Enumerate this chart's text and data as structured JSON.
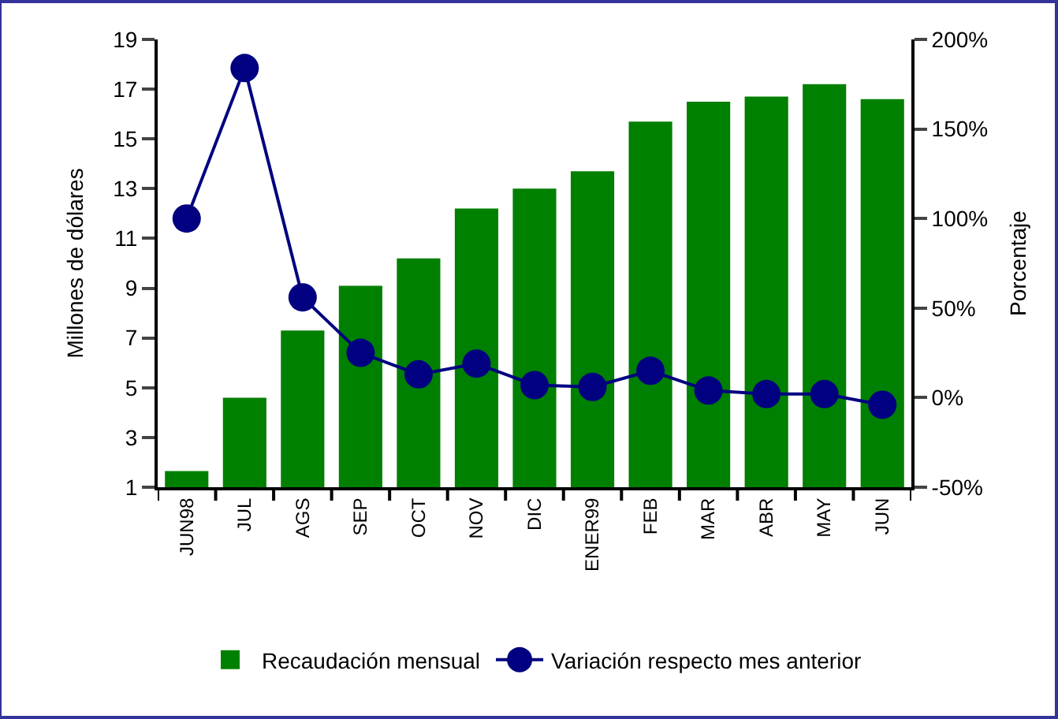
{
  "chart_data": {
    "type": "bar",
    "categories": [
      "JUN98",
      "JUL",
      "AGS",
      "SEP",
      "OCT",
      "NOV",
      "DIC",
      "ENER99",
      "FEB",
      "MAR",
      "ABR",
      "MAY",
      "JUN"
    ],
    "series": [
      {
        "name": "Recaudación mensual",
        "color": "#008000",
        "values": [
          1.65,
          4.6,
          7.3,
          9.1,
          10.2,
          12.2,
          13.0,
          13.7,
          15.7,
          16.5,
          16.7,
          17.2,
          16.6
        ]
      },
      {
        "name": "Variación respecto mes anterior",
        "type": "line",
        "axis": "y2",
        "color": "#000080",
        "marker": "circle",
        "values": [
          100,
          184,
          56,
          25,
          13,
          19,
          7,
          6,
          15,
          4,
          2,
          2,
          -4
        ]
      }
    ],
    "ylabel": "Millones de dólares",
    "y2label": "Porcentaje",
    "ylim": [
      1,
      19
    ],
    "yticks": [
      1,
      3,
      5,
      7,
      9,
      11,
      13,
      15,
      17,
      19
    ],
    "y2lim": [
      -50,
      200
    ],
    "y2ticks": [
      {
        "value": -50,
        "label": "-50%"
      },
      {
        "value": 0,
        "label": "0%"
      },
      {
        "value": 50,
        "label": "50%"
      },
      {
        "value": 100,
        "label": "100%"
      },
      {
        "value": 150,
        "label": "150%"
      },
      {
        "value": 200,
        "label": "200%"
      }
    ],
    "legend": "bottom"
  }
}
